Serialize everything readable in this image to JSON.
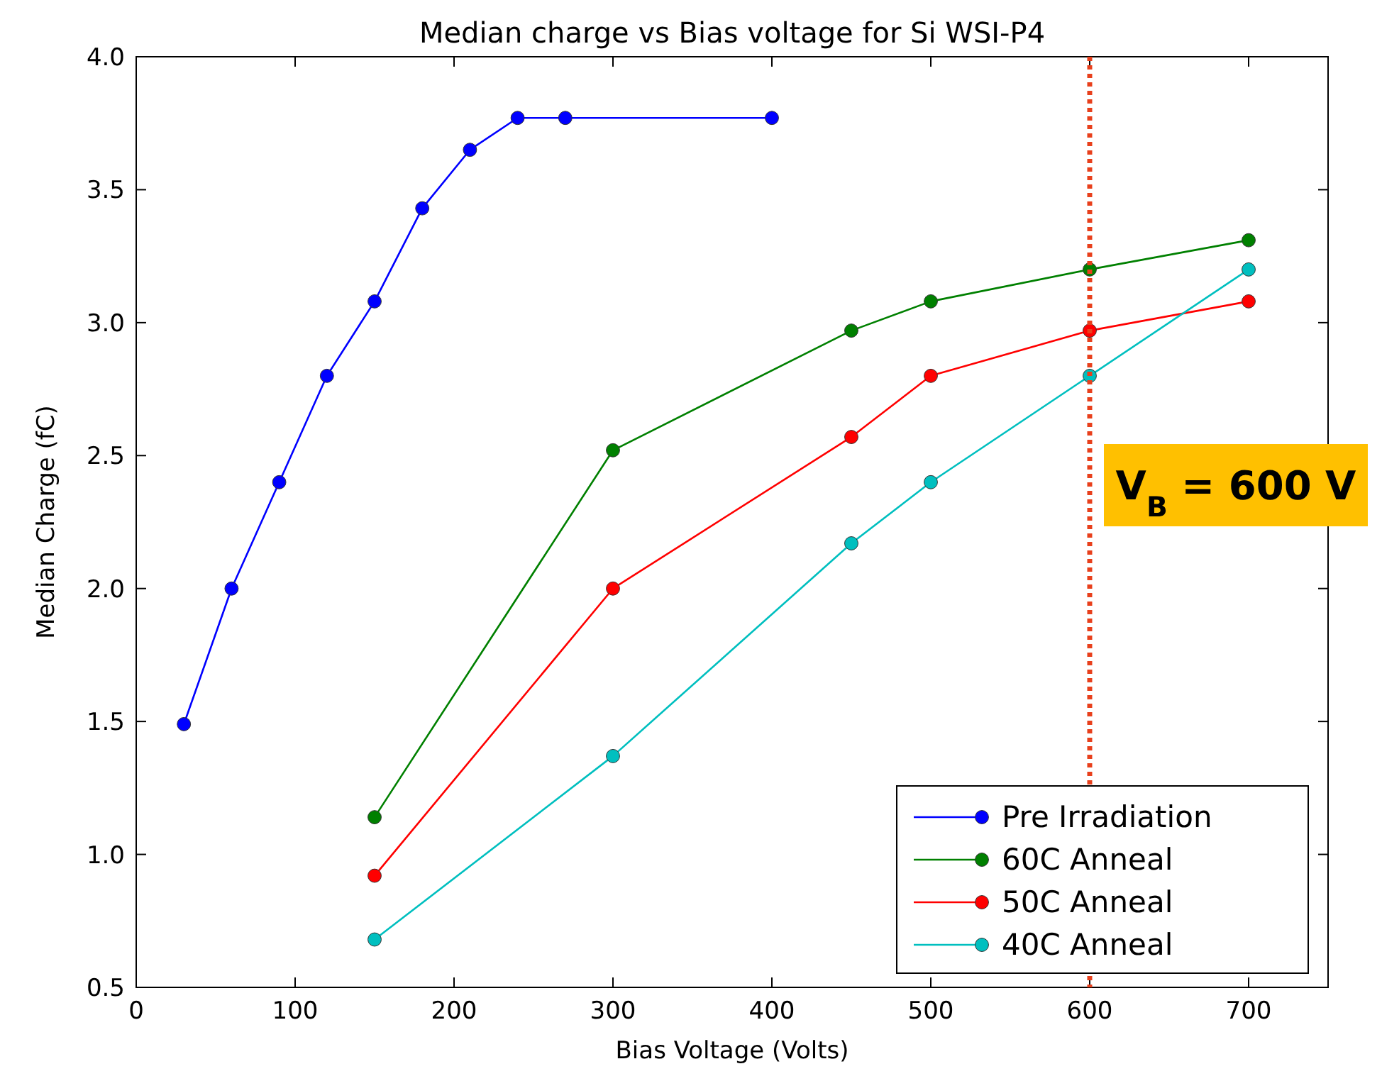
{
  "chart_data": {
    "type": "line",
    "title": "Median charge vs Bias voltage for Si WSI-P4",
    "xlabel": "Bias Voltage (Volts)",
    "ylabel": "Median Charge (fC)",
    "xlim": [
      0,
      750
    ],
    "xticks": [
      0,
      100,
      200,
      300,
      400,
      500,
      600,
      700
    ],
    "ylim": [
      0.5,
      4.0
    ],
    "yticks": [
      0.5,
      {
        "value": 1,
        "label": "1.0"
      },
      1.5,
      {
        "value": 2,
        "label": "2.0"
      },
      2.5,
      {
        "value": 3,
        "label": "3.0"
      },
      3.5,
      {
        "value": 4,
        "label": "4.0"
      }
    ],
    "series": [
      {
        "name": "Pre Irradiation",
        "color": "#0000ff",
        "x": [
          30,
          60,
          90,
          120,
          150,
          180,
          210,
          240,
          270,
          400
        ],
        "values": [
          1.49,
          2.0,
          2.4,
          2.8,
          3.08,
          3.43,
          3.65,
          3.77,
          3.77,
          3.77
        ]
      },
      {
        "name": "60C Anneal",
        "color": "#008000",
        "x": [
          150,
          300,
          450,
          500,
          600,
          700
        ],
        "values": [
          1.14,
          2.52,
          2.97,
          3.08,
          3.2,
          3.31
        ]
      },
      {
        "name": "50C Anneal",
        "color": "#ff0000",
        "x": [
          150,
          300,
          450,
          500,
          600,
          700
        ],
        "values": [
          0.92,
          2.0,
          2.57,
          2.8,
          2.97,
          3.08
        ]
      },
      {
        "name": "40C Anneal",
        "color": "#00bfbf",
        "x": [
          150,
          300,
          450,
          500,
          600,
          700
        ],
        "values": [
          0.68,
          1.37,
          2.17,
          2.4,
          2.8,
          3.2
        ]
      }
    ],
    "ref_lines": [
      {
        "axis": "x",
        "value": 600,
        "label": "V$_{B}$ = 600 V",
        "color": "#e8401c",
        "line_style": "dotted"
      }
    ],
    "marker": "circle",
    "line_style": "solid",
    "grid": false,
    "legend": "bottom right"
  }
}
